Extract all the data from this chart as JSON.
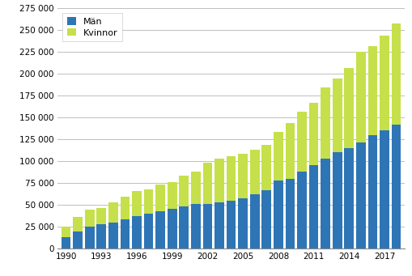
{
  "years": [
    1990,
    1991,
    1992,
    1993,
    1994,
    1995,
    1996,
    1997,
    1998,
    1999,
    2000,
    2001,
    2002,
    2003,
    2004,
    2005,
    2006,
    2007,
    2008,
    2009,
    2010,
    2011,
    2012,
    2013,
    2014,
    2015,
    2016,
    2017,
    2018
  ],
  "man_vals": [
    13000,
    19000,
    25000,
    28000,
    30000,
    33000,
    37000,
    40000,
    43000,
    45000,
    48000,
    51000,
    51000,
    53000,
    55000,
    57000,
    62000,
    67000,
    78000,
    80000,
    88000,
    95000,
    103000,
    110000,
    115000,
    121000,
    130000,
    135000,
    142000
  ],
  "totals": [
    25000,
    36000,
    44000,
    46000,
    53000,
    59000,
    66000,
    68000,
    73000,
    76000,
    83000,
    88000,
    98000,
    103000,
    106000,
    108000,
    113000,
    119000,
    133000,
    144000,
    157000,
    167000,
    184000,
    195000,
    207000,
    225000,
    232000,
    244000,
    258000
  ],
  "man_color": "#2e75b6",
  "kvinnor_color": "#c5e04a",
  "ylim": [
    0,
    275000
  ],
  "yticks": [
    0,
    25000,
    50000,
    75000,
    100000,
    125000,
    150000,
    175000,
    200000,
    225000,
    250000,
    275000
  ],
  "xticks": [
    1990,
    1993,
    1996,
    1999,
    2002,
    2005,
    2008,
    2011,
    2014,
    2017
  ],
  "legend_man": "Män",
  "legend_kvinnor": "Kvinnor",
  "bar_width": 0.8,
  "background_color": "#ffffff",
  "grid_color": "#bebebe"
}
